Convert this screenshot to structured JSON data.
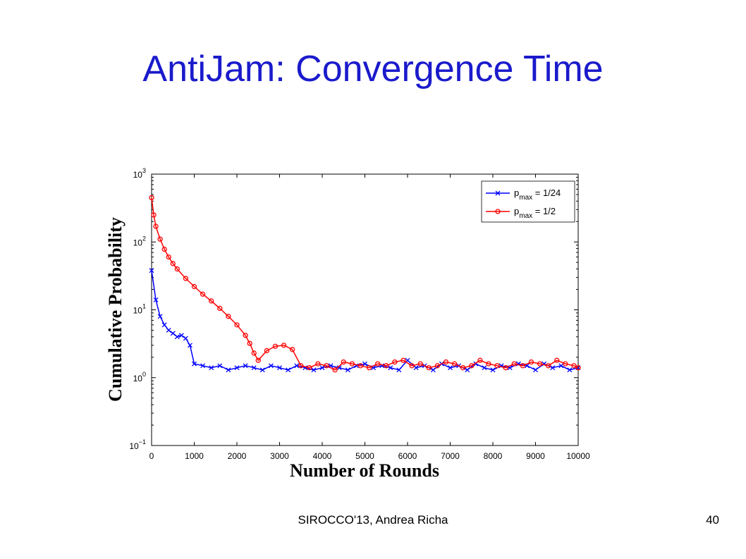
{
  "slide": {
    "title": "AntiJam: Convergence Time",
    "footer": "SIROCCO'13, Andrea Richa",
    "page_number": "40"
  },
  "chart_data": {
    "type": "line",
    "xlabel": "Number of Rounds",
    "ylabel": "Cumulative Probability",
    "xlim": [
      0,
      10000
    ],
    "ylim": [
      0.1,
      1000
    ],
    "yscale": "log",
    "x_ticks": [
      "0",
      "1000",
      "2000",
      "3000",
      "4000",
      "5000",
      "6000",
      "7000",
      "8000",
      "9000",
      "10000"
    ],
    "y_ticks": [
      {
        "base": "10",
        "exp": "3"
      },
      {
        "base": "10",
        "exp": "2"
      },
      {
        "base": "10",
        "exp": "1"
      },
      {
        "base": "10",
        "exp": "0"
      },
      {
        "base": "10",
        "exp": "−1"
      }
    ],
    "legend_position": "top-right",
    "series": [
      {
        "name_main": "p",
        "name_sub": "max",
        "name_rest": " = 1/24",
        "color": "#0000ff",
        "marker": "x",
        "x": [
          0,
          100,
          200,
          300,
          400,
          500,
          600,
          700,
          800,
          900,
          1000,
          1200,
          1400,
          1600,
          1800,
          2000,
          2200,
          2400,
          2600,
          2800,
          3000,
          3200,
          3400,
          3600,
          3800,
          4000,
          4200,
          4400,
          4600,
          4800,
          5000,
          5200,
          5400,
          5600,
          5800,
          6000,
          6200,
          6400,
          6600,
          6800,
          7000,
          7200,
          7400,
          7600,
          7800,
          8000,
          8200,
          8400,
          8600,
          8800,
          9000,
          9200,
          9400,
          9600,
          9800,
          10000
        ],
        "y": [
          38,
          14,
          8,
          6,
          5,
          4.5,
          4,
          4.2,
          3.8,
          3,
          1.6,
          1.5,
          1.4,
          1.5,
          1.3,
          1.4,
          1.5,
          1.4,
          1.3,
          1.5,
          1.4,
          1.3,
          1.5,
          1.4,
          1.3,
          1.4,
          1.5,
          1.4,
          1.3,
          1.5,
          1.6,
          1.4,
          1.5,
          1.4,
          1.3,
          1.8,
          1.4,
          1.5,
          1.3,
          1.6,
          1.4,
          1.5,
          1.3,
          1.6,
          1.4,
          1.3,
          1.5,
          1.4,
          1.6,
          1.5,
          1.3,
          1.6,
          1.4,
          1.5,
          1.3,
          1.4
        ]
      },
      {
        "name_main": "p",
        "name_sub": "max",
        "name_rest": " = 1/2",
        "color": "#ff0000",
        "marker": "o",
        "x": [
          0,
          50,
          100,
          200,
          300,
          400,
          500,
          600,
          800,
          1000,
          1200,
          1400,
          1600,
          1800,
          2000,
          2200,
          2300,
          2400,
          2500,
          2700,
          2900,
          3100,
          3300,
          3500,
          3700,
          3900,
          4100,
          4300,
          4500,
          4700,
          4900,
          5100,
          5300,
          5500,
          5700,
          5900,
          6100,
          6300,
          6500,
          6700,
          6900,
          7100,
          7300,
          7500,
          7700,
          7900,
          8100,
          8300,
          8500,
          8700,
          8900,
          9100,
          9300,
          9500,
          9700,
          9900,
          10000
        ],
        "y": [
          450,
          250,
          170,
          110,
          78,
          60,
          48,
          40,
          29,
          22,
          17,
          13.5,
          10.5,
          8,
          6,
          4.2,
          3.2,
          2.3,
          1.8,
          2.5,
          2.9,
          3,
          2.6,
          1.5,
          1.4,
          1.6,
          1.5,
          1.3,
          1.7,
          1.6,
          1.5,
          1.4,
          1.6,
          1.5,
          1.7,
          1.8,
          1.5,
          1.6,
          1.4,
          1.5,
          1.7,
          1.6,
          1.4,
          1.5,
          1.8,
          1.6,
          1.5,
          1.4,
          1.6,
          1.5,
          1.7,
          1.6,
          1.5,
          1.8,
          1.6,
          1.5,
          1.4
        ]
      }
    ]
  }
}
